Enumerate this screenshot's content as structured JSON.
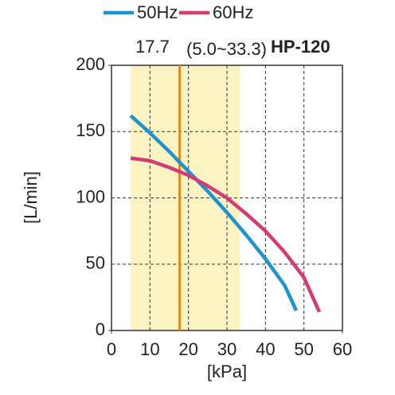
{
  "chart_data": {
    "type": "line",
    "title": "HP-120",
    "marker": {
      "label": "17.7",
      "value": 17.7,
      "color": "#e8891a"
    },
    "band": {
      "label": "(5.0~33.3)",
      "range": [
        5,
        33.3
      ],
      "color": "#fbf3c2"
    },
    "x_label": "[kPa]",
    "y_label": "[L/min]",
    "series": [
      {
        "name": "50Hz",
        "color": "#1e93cf",
        "x": [
          5,
          10,
          15,
          20,
          25,
          30,
          35,
          40,
          45,
          48
        ],
        "values": [
          162,
          149,
          135,
          120,
          105,
          89,
          72,
          54,
          34,
          15
        ]
      },
      {
        "name": "60Hz",
        "color": "#d43a74",
        "x": [
          5,
          10,
          15,
          20,
          25,
          30,
          35,
          40,
          45,
          50,
          54
        ],
        "values": [
          130,
          128,
          123,
          117,
          109,
          100,
          88,
          75,
          59,
          40,
          14
        ]
      }
    ],
    "xlim": [
      0,
      60
    ],
    "xticks": [
      0,
      10,
      20,
      30,
      40,
      50,
      60
    ],
    "ylim": [
      0,
      200
    ],
    "yticks": [
      0,
      50,
      100,
      150,
      200
    ],
    "grid": true
  }
}
